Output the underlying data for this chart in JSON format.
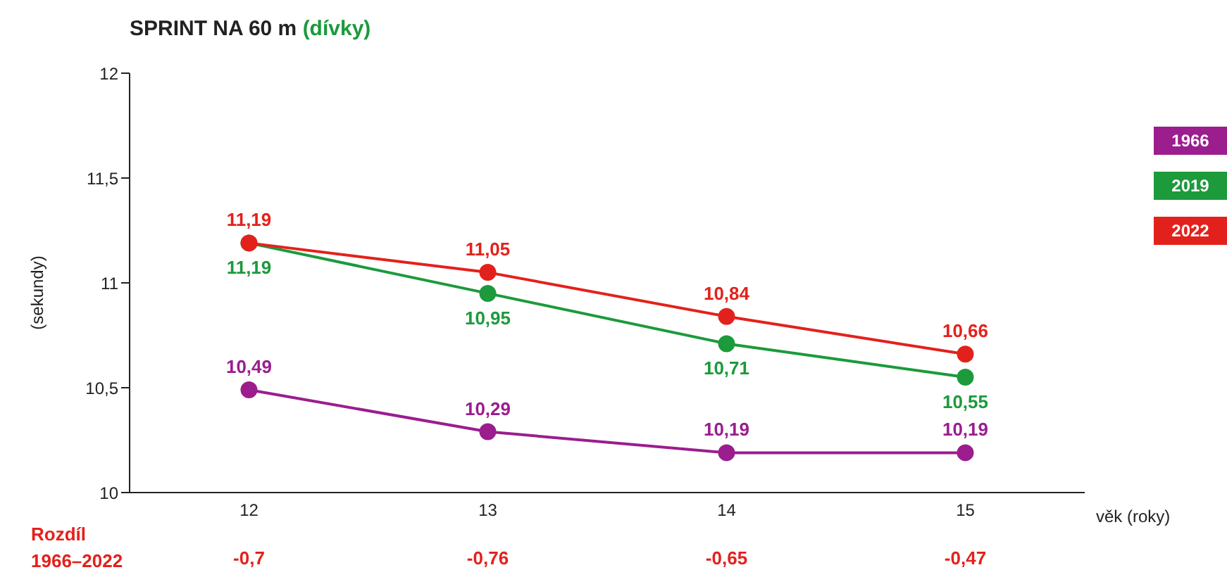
{
  "chart_data": {
    "type": "line",
    "title": "SPRINT NA 60 m",
    "subtitle": "(dívky)",
    "xlabel": "věk (roky)",
    "ylabel": "(sekundy)",
    "categories": [
      "12",
      "13",
      "14",
      "15"
    ],
    "series": [
      {
        "name": "1966",
        "color": "#9b1d8e",
        "values": [
          10.49,
          10.29,
          10.19,
          10.19
        ],
        "value_labels": [
          "10,49",
          "10,29",
          "10,19",
          "10,19"
        ]
      },
      {
        "name": "2019",
        "color": "#1c9a3c",
        "values": [
          11.19,
          10.95,
          10.71,
          10.55
        ],
        "value_labels": [
          "11,19",
          "10,95",
          "10,71",
          "10,55"
        ]
      },
      {
        "name": "2022",
        "color": "#e3211c",
        "values": [
          11.19,
          11.05,
          10.84,
          10.66
        ],
        "value_labels": [
          "11,19",
          "11,05",
          "10,84",
          "10,66"
        ]
      }
    ],
    "ylim": [
      10,
      12
    ],
    "yticks": [
      10,
      {
        "value": 10.5,
        "label": "10,5"
      },
      11,
      {
        "value": 11.5,
        "label": "11,5"
      },
      12
    ],
    "annotations": [
      "Rozdíl 1966–2022",
      "-0,7",
      "-0,76",
      "-0,65",
      "-0,47"
    ],
    "legend": "right",
    "marker": "circle",
    "line_style": "solid",
    "grid": false
  }
}
